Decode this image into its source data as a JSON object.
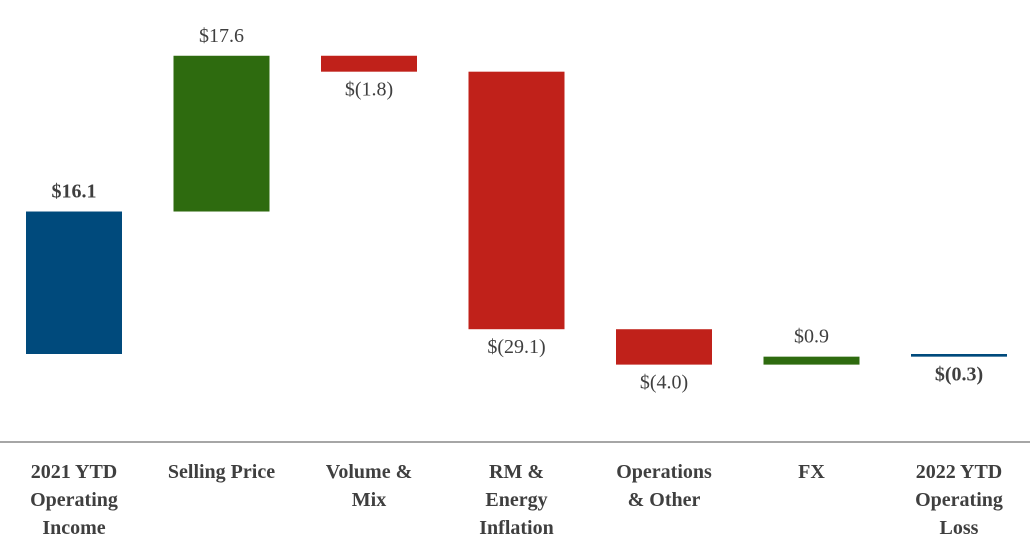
{
  "chart_data": {
    "type": "bar",
    "subtype": "waterfall",
    "title": "",
    "xlabel": "",
    "ylabel": "",
    "ylim": [
      -16,
      34
    ],
    "grid": false,
    "categories": [
      "2021 YTD\nOperating\nIncome",
      "Selling Price",
      "Volume &\nMix",
      "RM &\nEnergy\nInflation",
      "Operations\n& Other",
      "FX",
      "2022 YTD\nOperating\nLoss"
    ],
    "values": [
      16.1,
      17.6,
      -1.8,
      -29.1,
      -4.0,
      0.9,
      -0.3
    ],
    "kinds": [
      "total",
      "increase",
      "decrease",
      "decrease",
      "decrease",
      "increase",
      "total"
    ],
    "data_labels": [
      "$16.1",
      "$17.6",
      "$(1.8)",
      "$(29.1)",
      "$(4.0)",
      "$0.9",
      "$(0.3)"
    ],
    "colors": {
      "total": "#004a7c",
      "increase": "#2e6b0f",
      "decrease": "#c0211a",
      "label_text": "#3f3f3f",
      "axis_line": "#a6a6a6"
    }
  }
}
